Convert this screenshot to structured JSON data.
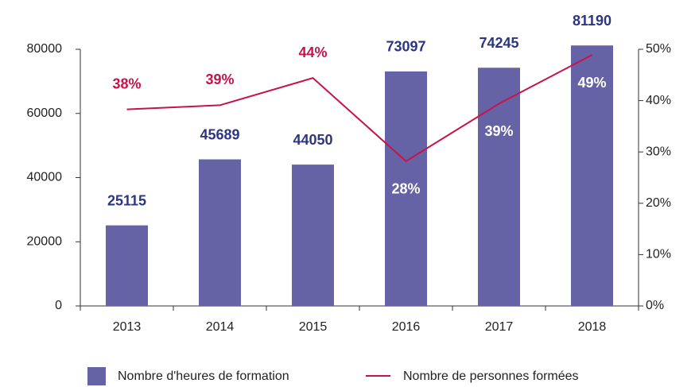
{
  "chart_data": {
    "type": "bar",
    "categories": [
      "2013",
      "2014",
      "2015",
      "2016",
      "2017",
      "2018"
    ],
    "series": [
      {
        "name": "Nombre d'heures de formation",
        "color": "#6563a6",
        "type": "bar",
        "values": [
          25115,
          45689,
          44050,
          73097,
          74245,
          81190
        ]
      },
      {
        "name": "Nombre de personnes formées",
        "color": "#c8134a",
        "type": "line",
        "axis": "y2",
        "values": [
          38.3,
          39.1,
          44.4,
          28.2,
          39.4,
          48.9
        ],
        "value_labels": [
          "38%",
          "39%",
          "44%",
          "28%",
          "39%",
          "49%"
        ]
      }
    ],
    "ylim": [
      0,
      80000
    ],
    "yticks": [
      0,
      20000,
      40000,
      60000,
      80000
    ],
    "y2lim": [
      0,
      50
    ],
    "y2ticks": [
      {
        "value": 0,
        "label": "0%"
      },
      {
        "value": 10,
        "label": "10%"
      },
      {
        "value": 20,
        "label": "20%"
      },
      {
        "value": 30,
        "label": "30%"
      },
      {
        "value": 40,
        "label": "40%"
      },
      {
        "value": 50,
        "label": "50%"
      }
    ],
    "legend": "bottom"
  }
}
